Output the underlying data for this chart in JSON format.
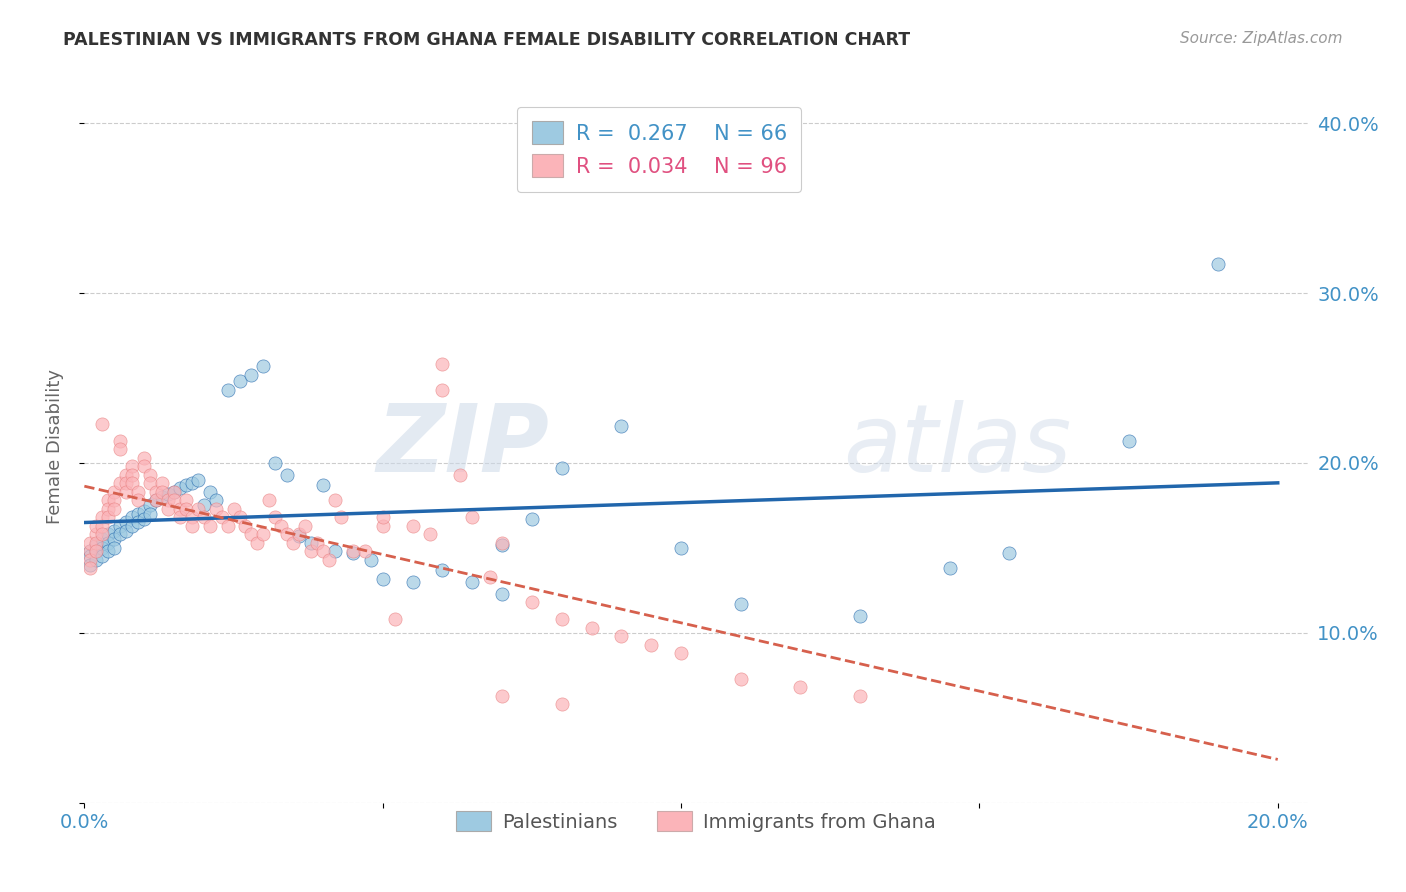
{
  "title": "PALESTINIAN VS IMMIGRANTS FROM GHANA FEMALE DISABILITY CORRELATION CHART",
  "source": "Source: ZipAtlas.com",
  "ylabel": "Female Disability",
  "xlim": [
    0.0,
    0.205
  ],
  "ylim": [
    0.0,
    0.42
  ],
  "xticks": [
    0.0,
    0.05,
    0.1,
    0.15,
    0.2
  ],
  "xtick_labels": [
    "0.0%",
    "",
    "",
    "",
    "20.0%"
  ],
  "yticks": [
    0.0,
    0.1,
    0.2,
    0.3,
    0.4
  ],
  "ytick_right_labels": [
    "",
    "10.0%",
    "20.0%",
    "30.0%",
    "40.0%"
  ],
  "watermark_zip": "ZIP",
  "watermark_atlas": "atlas",
  "legend_label1": "Palestinians",
  "legend_label2": "Immigrants from Ghana",
  "color_blue": "#9ecae1",
  "color_pink": "#fbb4b9",
  "color_blue_text": "#4292c6",
  "color_trendline_blue": "#2166ac",
  "color_trendline_pink": "#d6604d",
  "R_blue": 0.267,
  "N_blue": 66,
  "R_pink": 0.034,
  "N_pink": 96,
  "blue_scatter_x": [
    0.001,
    0.001,
    0.001,
    0.002,
    0.002,
    0.002,
    0.003,
    0.003,
    0.003,
    0.004,
    0.004,
    0.004,
    0.005,
    0.005,
    0.005,
    0.006,
    0.006,
    0.007,
    0.007,
    0.008,
    0.008,
    0.009,
    0.009,
    0.01,
    0.01,
    0.011,
    0.011,
    0.012,
    0.013,
    0.014,
    0.015,
    0.016,
    0.017,
    0.018,
    0.019,
    0.02,
    0.021,
    0.022,
    0.024,
    0.026,
    0.028,
    0.03,
    0.032,
    0.034,
    0.036,
    0.038,
    0.04,
    0.042,
    0.045,
    0.048,
    0.05,
    0.055,
    0.06,
    0.065,
    0.07,
    0.075,
    0.08,
    0.09,
    0.1,
    0.11,
    0.13,
    0.155,
    0.175,
    0.19,
    0.07,
    0.145
  ],
  "blue_scatter_y": [
    0.148,
    0.145,
    0.14,
    0.152,
    0.148,
    0.143,
    0.155,
    0.15,
    0.145,
    0.158,
    0.153,
    0.148,
    0.16,
    0.155,
    0.15,
    0.163,
    0.158,
    0.165,
    0.16,
    0.168,
    0.163,
    0.17,
    0.165,
    0.172,
    0.167,
    0.175,
    0.17,
    0.178,
    0.18,
    0.182,
    0.183,
    0.185,
    0.187,
    0.188,
    0.19,
    0.175,
    0.183,
    0.178,
    0.243,
    0.248,
    0.252,
    0.257,
    0.2,
    0.193,
    0.157,
    0.153,
    0.187,
    0.148,
    0.147,
    0.143,
    0.132,
    0.13,
    0.137,
    0.13,
    0.152,
    0.167,
    0.197,
    0.222,
    0.15,
    0.117,
    0.11,
    0.147,
    0.213,
    0.317,
    0.123,
    0.138
  ],
  "pink_scatter_x": [
    0.001,
    0.001,
    0.001,
    0.001,
    0.002,
    0.002,
    0.002,
    0.002,
    0.003,
    0.003,
    0.003,
    0.003,
    0.004,
    0.004,
    0.004,
    0.005,
    0.005,
    0.005,
    0.006,
    0.006,
    0.006,
    0.007,
    0.007,
    0.007,
    0.008,
    0.008,
    0.008,
    0.009,
    0.009,
    0.01,
    0.01,
    0.011,
    0.011,
    0.012,
    0.012,
    0.013,
    0.013,
    0.014,
    0.014,
    0.015,
    0.015,
    0.016,
    0.016,
    0.017,
    0.017,
    0.018,
    0.018,
    0.019,
    0.02,
    0.021,
    0.022,
    0.023,
    0.024,
    0.025,
    0.026,
    0.027,
    0.028,
    0.029,
    0.03,
    0.031,
    0.032,
    0.033,
    0.034,
    0.035,
    0.036,
    0.037,
    0.038,
    0.039,
    0.04,
    0.041,
    0.042,
    0.043,
    0.045,
    0.047,
    0.05,
    0.052,
    0.055,
    0.058,
    0.06,
    0.063,
    0.065,
    0.068,
    0.07,
    0.075,
    0.08,
    0.085,
    0.09,
    0.095,
    0.1,
    0.11,
    0.12,
    0.13,
    0.06,
    0.05,
    0.07,
    0.08
  ],
  "pink_scatter_y": [
    0.148,
    0.153,
    0.143,
    0.138,
    0.158,
    0.163,
    0.153,
    0.148,
    0.223,
    0.168,
    0.163,
    0.158,
    0.178,
    0.173,
    0.168,
    0.183,
    0.178,
    0.173,
    0.213,
    0.208,
    0.188,
    0.193,
    0.188,
    0.183,
    0.198,
    0.193,
    0.188,
    0.183,
    0.178,
    0.203,
    0.198,
    0.193,
    0.188,
    0.183,
    0.178,
    0.188,
    0.183,
    0.178,
    0.173,
    0.183,
    0.178,
    0.173,
    0.168,
    0.178,
    0.173,
    0.168,
    0.163,
    0.173,
    0.168,
    0.163,
    0.173,
    0.168,
    0.163,
    0.173,
    0.168,
    0.163,
    0.158,
    0.153,
    0.158,
    0.178,
    0.168,
    0.163,
    0.158,
    0.153,
    0.158,
    0.163,
    0.148,
    0.153,
    0.148,
    0.143,
    0.178,
    0.168,
    0.148,
    0.148,
    0.163,
    0.108,
    0.163,
    0.158,
    0.258,
    0.193,
    0.168,
    0.133,
    0.153,
    0.118,
    0.108,
    0.103,
    0.098,
    0.093,
    0.088,
    0.073,
    0.068,
    0.063,
    0.243,
    0.168,
    0.063,
    0.058
  ]
}
